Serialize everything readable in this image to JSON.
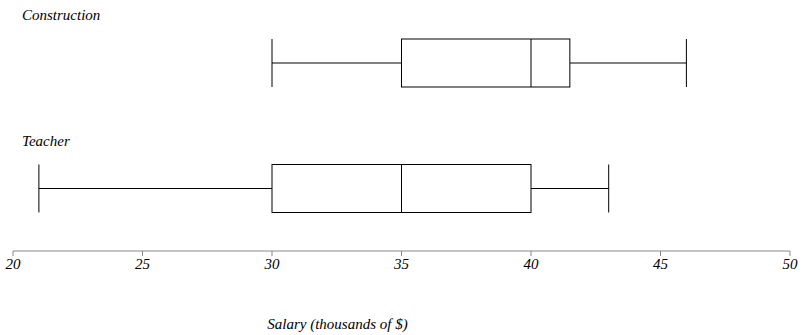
{
  "chart_data": {
    "type": "box",
    "orientation": "horizontal",
    "xlabel": "Salary (thousands of $)",
    "categories": [
      "Construction",
      "Teacher"
    ],
    "min": [
      30,
      21
    ],
    "q1": [
      35,
      30
    ],
    "median": [
      40,
      35
    ],
    "q3": [
      41.5,
      40
    ],
    "max": [
      46,
      43
    ],
    "xlim": [
      20,
      50
    ],
    "xticks": [
      20,
      25,
      30,
      35,
      40,
      45,
      50
    ],
    "color": "#000000"
  }
}
